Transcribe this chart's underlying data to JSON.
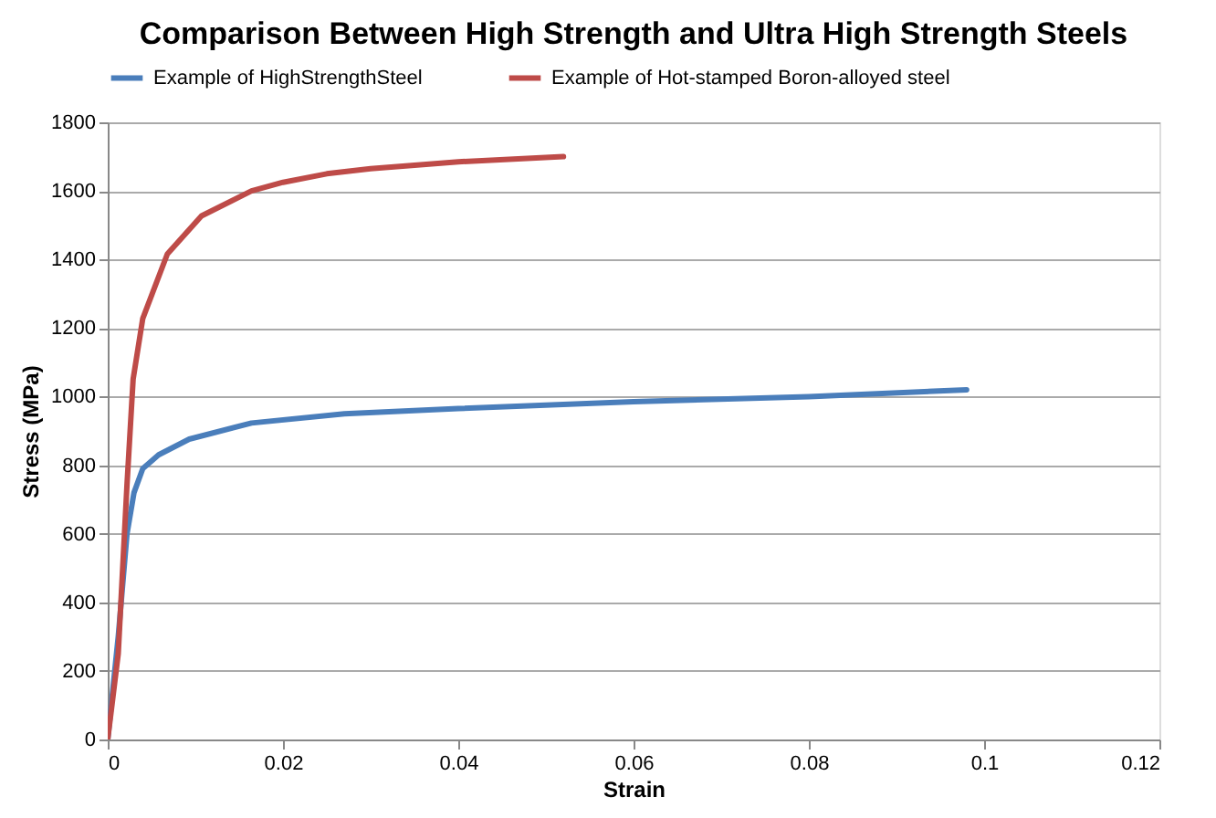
{
  "chart_data": {
    "type": "line",
    "title": "Comparison Between High Strength  and Ultra High Strength Steels",
    "xlabel": "Strain",
    "ylabel": "Stress (MPa)",
    "series": [
      {
        "name": "Example of HighStrengthSteel",
        "color": "#4a7ebb",
        "x": [
          0,
          0.0012,
          0.0022,
          0.003,
          0.004,
          0.0058,
          0.0093,
          0.0164,
          0.027,
          0.04,
          0.06,
          0.08,
          0.098
        ],
        "values": [
          0,
          300,
          600,
          720,
          790,
          830,
          876,
          923,
          950,
          965,
          985,
          1000,
          1020
        ]
      },
      {
        "name": "Example of Hot-stamped Boron-alloyed steel",
        "color": "#be4b48",
        "x": [
          0,
          0.0012,
          0.0022,
          0.0029,
          0.004,
          0.0068,
          0.0107,
          0.0164,
          0.02,
          0.025,
          0.03,
          0.04,
          0.052
        ],
        "values": [
          0,
          250,
          744,
          1051,
          1228,
          1416,
          1527,
          1600,
          1625,
          1650,
          1665,
          1685,
          1700
        ]
      }
    ],
    "xlim": [
      0,
      0.12
    ],
    "xticks": [
      0,
      0.02,
      0.04,
      0.06,
      0.08,
      0.1,
      0.12
    ],
    "ylim": [
      0,
      1800
    ],
    "yticks": [
      0,
      200,
      400,
      600,
      800,
      1000,
      1200,
      1400,
      1600,
      1800
    ],
    "grid": "y",
    "legend": "top",
    "marker": "none",
    "line_style": "solid"
  }
}
